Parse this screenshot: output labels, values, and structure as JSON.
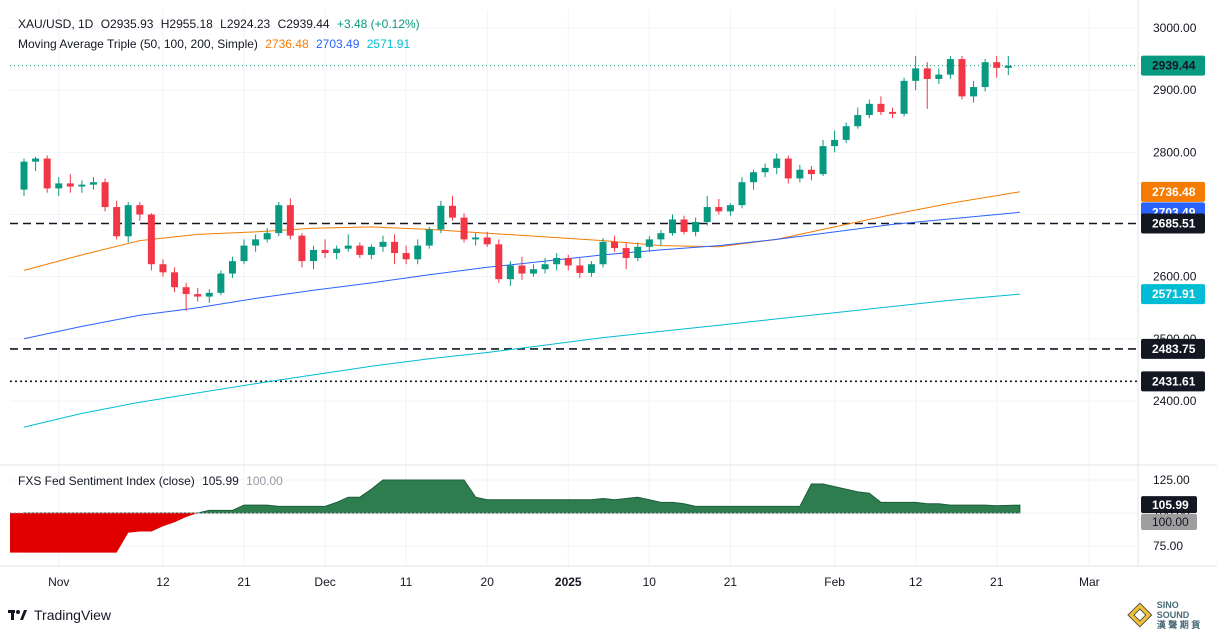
{
  "header": {
    "symbol": "XAU/USD, 1D",
    "open": "O2935.93",
    "high": "H2955.18",
    "low": "L2924.23",
    "close": "C2939.44",
    "change": "+3.48 (+0.12%)",
    "ma_label": "Moving Average Triple (50, 100, 200, Simple)",
    "ma50_value": "2736.48",
    "ma100_value": "2703.49",
    "ma200_value": "2571.91"
  },
  "sub_header": {
    "label": "FXS Fed Sentiment Index (close)",
    "value": "105.99",
    "baseline": "100.00"
  },
  "footer": {
    "brand": "TradingView"
  },
  "watermark": {
    "line1": "SINO SOUND",
    "line2": "漢 聲 期 貨"
  },
  "colors": {
    "up": "#089981",
    "down": "#f23645",
    "ma50": "#f57c00",
    "ma100": "#2962ff",
    "ma200": "#00bcd4",
    "sentiment_above": "#2e7d4f",
    "sentiment_below": "#e00000"
  },
  "chart_data": [
    {
      "type": "candlestick",
      "yticks": [
        2400,
        2500,
        2600,
        2700,
        2800,
        2900,
        3000
      ],
      "ylim": [
        2358,
        3020
      ],
      "xticks": [
        {
          "label": "Nov",
          "index": 3
        },
        {
          "label": "12",
          "index": 12
        },
        {
          "label": "21",
          "index": 19
        },
        {
          "label": "Dec",
          "index": 26
        },
        {
          "label": "11",
          "index": 33
        },
        {
          "label": "20",
          "index": 40
        },
        {
          "label": "2025",
          "index": 47
        },
        {
          "label": "10",
          "index": 54
        },
        {
          "label": "21",
          "index": 61
        },
        {
          "label": "Feb",
          "index": 70
        },
        {
          "label": "12",
          "index": 77
        },
        {
          "label": "21",
          "index": 84
        },
        {
          "label": "Mar",
          "index": 92
        }
      ],
      "price_labels": [
        {
          "value": "2939.44",
          "y": 2939.44,
          "color": "#089981",
          "text_color": "#131722"
        },
        {
          "value": "2736.48",
          "y": 2736.48,
          "color": "#f57c00",
          "text_color": "#ffffff"
        },
        {
          "value": "2703.49",
          "y": 2703.49,
          "color": "#2962ff",
          "text_color": "#ffffff"
        },
        {
          "value": "2685.51",
          "y": 2685.51,
          "color": "#131722",
          "text_color": "#ffffff"
        },
        {
          "value": "2571.91",
          "y": 2571.91,
          "color": "#00bcd4",
          "text_color": "#ffffff"
        },
        {
          "value": "2483.75",
          "y": 2483.75,
          "color": "#131722",
          "text_color": "#ffffff"
        },
        {
          "value": "2431.61",
          "y": 2431.61,
          "color": "#131722",
          "text_color": "#ffffff"
        }
      ],
      "hlines": [
        {
          "y": 2685.51,
          "style": "dashed"
        },
        {
          "y": 2483.75,
          "style": "dashed"
        },
        {
          "y": 2431.61,
          "style": "dotted"
        }
      ],
      "last_price": 2939.44,
      "candles": [
        [
          2740,
          2790,
          2730,
          2785
        ],
        [
          2785,
          2793,
          2770,
          2790
        ],
        [
          2790,
          2795,
          2735,
          2742
        ],
        [
          2742,
          2760,
          2730,
          2750
        ],
        [
          2750,
          2765,
          2735,
          2745
        ],
        [
          2745,
          2755,
          2735,
          2748
        ],
        [
          2748,
          2760,
          2740,
          2752
        ],
        [
          2752,
          2758,
          2705,
          2712
        ],
        [
          2712,
          2722,
          2660,
          2665
        ],
        [
          2665,
          2720,
          2655,
          2715
        ],
        [
          2715,
          2720,
          2690,
          2700
        ],
        [
          2700,
          2702,
          2610,
          2620
        ],
        [
          2620,
          2628,
          2600,
          2607
        ],
        [
          2607,
          2615,
          2575,
          2583
        ],
        [
          2583,
          2590,
          2545,
          2572
        ],
        [
          2572,
          2582,
          2560,
          2568
        ],
        [
          2568,
          2580,
          2558,
          2574
        ],
        [
          2574,
          2610,
          2570,
          2605
        ],
        [
          2605,
          2632,
          2598,
          2625
        ],
        [
          2625,
          2660,
          2620,
          2650
        ],
        [
          2650,
          2668,
          2640,
          2660
        ],
        [
          2660,
          2678,
          2655,
          2670
        ],
        [
          2670,
          2720,
          2665,
          2715
        ],
        [
          2715,
          2726,
          2660,
          2666
        ],
        [
          2666,
          2670,
          2615,
          2625
        ],
        [
          2625,
          2650,
          2612,
          2643
        ],
        [
          2643,
          2660,
          2630,
          2638
        ],
        [
          2638,
          2650,
          2628,
          2645
        ],
        [
          2645,
          2668,
          2640,
          2650
        ],
        [
          2650,
          2655,
          2630,
          2635
        ],
        [
          2635,
          2652,
          2628,
          2648
        ],
        [
          2648,
          2666,
          2640,
          2656
        ],
        [
          2656,
          2668,
          2620,
          2638
        ],
        [
          2638,
          2650,
          2620,
          2628
        ],
        [
          2628,
          2660,
          2620,
          2650
        ],
        [
          2650,
          2680,
          2645,
          2676
        ],
        [
          2676,
          2722,
          2670,
          2714
        ],
        [
          2714,
          2730,
          2690,
          2695
        ],
        [
          2695,
          2702,
          2655,
          2660
        ],
        [
          2660,
          2670,
          2650,
          2663
        ],
        [
          2663,
          2672,
          2648,
          2652
        ],
        [
          2652,
          2660,
          2590,
          2596
        ],
        [
          2596,
          2625,
          2585,
          2618
        ],
        [
          2618,
          2632,
          2595,
          2605
        ],
        [
          2605,
          2620,
          2600,
          2612
        ],
        [
          2612,
          2630,
          2605,
          2620
        ],
        [
          2620,
          2638,
          2610,
          2630
        ],
        [
          2630,
          2635,
          2610,
          2618
        ],
        [
          2618,
          2630,
          2598,
          2606
        ],
        [
          2606,
          2625,
          2600,
          2620
        ],
        [
          2620,
          2662,
          2615,
          2656
        ],
        [
          2656,
          2666,
          2640,
          2646
        ],
        [
          2646,
          2655,
          2612,
          2630
        ],
        [
          2630,
          2655,
          2625,
          2648
        ],
        [
          2648,
          2665,
          2640,
          2660
        ],
        [
          2660,
          2675,
          2650,
          2670
        ],
        [
          2670,
          2700,
          2666,
          2692
        ],
        [
          2692,
          2698,
          2668,
          2672
        ],
        [
          2672,
          2695,
          2665,
          2688
        ],
        [
          2688,
          2730,
          2682,
          2712
        ],
        [
          2712,
          2725,
          2700,
          2705
        ],
        [
          2705,
          2718,
          2698,
          2715
        ],
        [
          2715,
          2760,
          2710,
          2752
        ],
        [
          2752,
          2772,
          2740,
          2768
        ],
        [
          2768,
          2782,
          2760,
          2775
        ],
        [
          2775,
          2798,
          2765,
          2790
        ],
        [
          2790,
          2795,
          2750,
          2758
        ],
        [
          2758,
          2780,
          2752,
          2772
        ],
        [
          2772,
          2778,
          2755,
          2765
        ],
        [
          2765,
          2820,
          2762,
          2810
        ],
        [
          2810,
          2835,
          2800,
          2820
        ],
        [
          2820,
          2848,
          2815,
          2842
        ],
        [
          2842,
          2872,
          2838,
          2860
        ],
        [
          2860,
          2885,
          2855,
          2878
        ],
        [
          2878,
          2890,
          2860,
          2865
        ],
        [
          2865,
          2872,
          2855,
          2862
        ],
        [
          2862,
          2920,
          2858,
          2915
        ],
        [
          2915,
          2955,
          2900,
          2935
        ],
        [
          2935,
          2945,
          2870,
          2918
        ],
        [
          2918,
          2935,
          2910,
          2925
        ],
        [
          2925,
          2955,
          2918,
          2950
        ],
        [
          2950,
          2955,
          2885,
          2890
        ],
        [
          2890,
          2915,
          2880,
          2905
        ],
        [
          2905,
          2950,
          2898,
          2945
        ],
        [
          2945,
          2955,
          2920,
          2936
        ],
        [
          2935.93,
          2955.18,
          2924.23,
          2939.44
        ]
      ],
      "ma_series": [
        {
          "key": "ma50",
          "points": [
            [
              0,
              2610
            ],
            [
              5,
              2635
            ],
            [
              10,
              2658
            ],
            [
              15,
              2668
            ],
            [
              20,
              2672
            ],
            [
              25,
              2678
            ],
            [
              30,
              2680
            ],
            [
              35,
              2676
            ],
            [
              40,
              2670
            ],
            [
              45,
              2664
            ],
            [
              50,
              2658
            ],
            [
              55,
              2650
            ],
            [
              60,
              2648
            ],
            [
              65,
              2660
            ],
            [
              70,
              2680
            ],
            [
              75,
              2700
            ],
            [
              80,
              2718
            ],
            [
              86,
              2736.48
            ]
          ]
        },
        {
          "key": "ma100",
          "points": [
            [
              0,
              2500
            ],
            [
              5,
              2520
            ],
            [
              10,
              2538
            ],
            [
              15,
              2550
            ],
            [
              20,
              2565
            ],
            [
              25,
              2578
            ],
            [
              30,
              2590
            ],
            [
              35,
              2603
            ],
            [
              40,
              2615
            ],
            [
              45,
              2625
            ],
            [
              50,
              2635
            ],
            [
              55,
              2643
            ],
            [
              60,
              2650
            ],
            [
              65,
              2660
            ],
            [
              70,
              2672
            ],
            [
              75,
              2684
            ],
            [
              80,
              2693
            ],
            [
              86,
              2703.49
            ]
          ]
        },
        {
          "key": "ma200",
          "points": [
            [
              0,
              2358
            ],
            [
              5,
              2380
            ],
            [
              10,
              2398
            ],
            [
              15,
              2413
            ],
            [
              20,
              2428
            ],
            [
              25,
              2442
            ],
            [
              30,
              2456
            ],
            [
              35,
              2468
            ],
            [
              40,
              2478
            ],
            [
              45,
              2490
            ],
            [
              50,
              2502
            ],
            [
              55,
              2512
            ],
            [
              60,
              2522
            ],
            [
              65,
              2532
            ],
            [
              70,
              2542
            ],
            [
              75,
              2552
            ],
            [
              80,
              2562
            ],
            [
              86,
              2571.91
            ]
          ]
        }
      ]
    },
    {
      "type": "area",
      "name": "FXS Fed Sentiment Index (close)",
      "yticks": [
        75,
        100,
        125
      ],
      "ylim": [
        65,
        133
      ],
      "baseline": 100,
      "last_value": 105.99,
      "points": [
        [
          0,
          70
        ],
        [
          4,
          70
        ],
        [
          6,
          70
        ],
        [
          8,
          70
        ],
        [
          9,
          85
        ],
        [
          10,
          86
        ],
        [
          11,
          86
        ],
        [
          12,
          90
        ],
        [
          13,
          93
        ],
        [
          14,
          97
        ],
        [
          15,
          100
        ],
        [
          16,
          102
        ],
        [
          17,
          102
        ],
        [
          18,
          102
        ],
        [
          19,
          106
        ],
        [
          20,
          106
        ],
        [
          21,
          106
        ],
        [
          22,
          105
        ],
        [
          23,
          105
        ],
        [
          24,
          105
        ],
        [
          25,
          105
        ],
        [
          26,
          105
        ],
        [
          27,
          108
        ],
        [
          28,
          112
        ],
        [
          29,
          112
        ],
        [
          30,
          118
        ],
        [
          31,
          125
        ],
        [
          32,
          125
        ],
        [
          33,
          125
        ],
        [
          34,
          125
        ],
        [
          35,
          125
        ],
        [
          36,
          125
        ],
        [
          37,
          125
        ],
        [
          38,
          125
        ],
        [
          39,
          112
        ],
        [
          40,
          110
        ],
        [
          41,
          110
        ],
        [
          42,
          110
        ],
        [
          43,
          110
        ],
        [
          44,
          110
        ],
        [
          45,
          110
        ],
        [
          46,
          110
        ],
        [
          47,
          110
        ],
        [
          48,
          110
        ],
        [
          49,
          110
        ],
        [
          50,
          111
        ],
        [
          51,
          110
        ],
        [
          52,
          111
        ],
        [
          53,
          112
        ],
        [
          54,
          110
        ],
        [
          55,
          108
        ],
        [
          56,
          108
        ],
        [
          57,
          107
        ],
        [
          58,
          105
        ],
        [
          59,
          105
        ],
        [
          60,
          105
        ],
        [
          61,
          105
        ],
        [
          62,
          105
        ],
        [
          63,
          105
        ],
        [
          64,
          105
        ],
        [
          65,
          105
        ],
        [
          66,
          105
        ],
        [
          67,
          105
        ],
        [
          68,
          122
        ],
        [
          69,
          122
        ],
        [
          70,
          120
        ],
        [
          71,
          118
        ],
        [
          72,
          116
        ],
        [
          73,
          115
        ],
        [
          74,
          108
        ],
        [
          75,
          108
        ],
        [
          76,
          108
        ],
        [
          77,
          108
        ],
        [
          78,
          107
        ],
        [
          79,
          107
        ],
        [
          80,
          106
        ],
        [
          81,
          106
        ],
        [
          82,
          106
        ],
        [
          83,
          106
        ],
        [
          84,
          105.5
        ],
        [
          86,
          105.99
        ]
      ]
    }
  ]
}
